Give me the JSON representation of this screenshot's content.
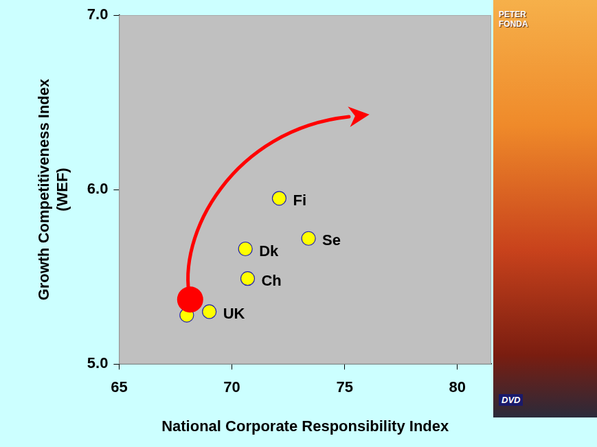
{
  "chart_data": {
    "type": "scatter",
    "x_label": "National Corporate Responsibility Index",
    "y_label": "Growth Competitiveness Index (WEF)",
    "xlim": [
      65,
      81.5
    ],
    "xticks": [
      65,
      70,
      75,
      80
    ],
    "ylim": [
      5,
      7
    ],
    "yticks": [
      {
        "value": 5,
        "label": "5.0"
      },
      {
        "value": 6,
        "label": "6.0"
      },
      {
        "value": 7,
        "label": "7.0"
      }
    ],
    "grid": false,
    "series": [
      {
        "color": "#ffff00",
        "marker": "circle",
        "x": [
          72.1,
          73.4,
          70.6,
          70.7,
          69.0,
          68.0
        ],
        "values": [
          5.95,
          5.72,
          5.66,
          5.49,
          5.3,
          5.28
        ],
        "point_labels": [
          "Fi",
          "Se",
          "Dk",
          "Ch",
          "UK",
          null
        ]
      },
      {
        "color": "#ff0000",
        "marker": "dot",
        "x": [
          68.15
        ],
        "values": [
          5.37
        ],
        "point_labels": [
          null
        ]
      }
    ],
    "arrow": {
      "from": [
        68.15,
        5.37
      ],
      "to": [
        76.1,
        6.43
      ],
      "color": "#ff0000"
    },
    "image_texts": [
      "PETER FONDA",
      "DVD"
    ]
  }
}
